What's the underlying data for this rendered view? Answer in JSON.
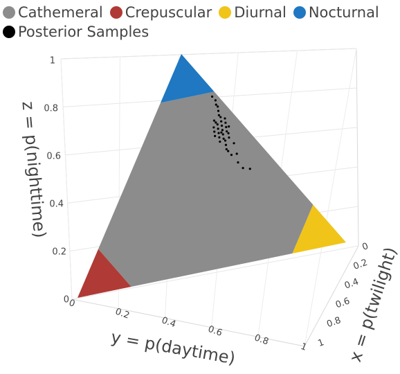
{
  "chart_data": {
    "type": "ternary3d",
    "zlabel": "z = p(nighttime)",
    "ylabel": "y = p(daytime)",
    "xlabel": "x = p(twilight)",
    "xlim": [
      0,
      1
    ],
    "ylim": [
      0,
      1
    ],
    "zlim": [
      0,
      1
    ],
    "xticks": [
      0,
      0.2,
      0.4,
      0.6,
      0.8,
      1
    ],
    "yticks": [
      0,
      0.2,
      0.4,
      0.6,
      0.8,
      1
    ],
    "zticks": [
      0,
      0.2,
      0.4,
      0.6,
      0.8,
      1
    ],
    "grid": true,
    "series": [
      {
        "name": "Cathemeral",
        "color": "#8c8c8c",
        "mode": "region",
        "x": [
          0.8,
          0.2,
          0,
          0,
          0.2,
          0.8
        ],
        "y": [
          0.2,
          0.8,
          0.8,
          0.2,
          0,
          0
        ],
        "z": [
          0,
          0,
          0.2,
          0.8,
          0.8,
          0.2
        ]
      },
      {
        "name": "Crepuscular",
        "color": "#b03a35",
        "mode": "region",
        "x": [
          1,
          0.8,
          0.8
        ],
        "y": [
          0,
          0.2,
          0
        ],
        "z": [
          0,
          0,
          0.2
        ]
      },
      {
        "name": "Diurnal",
        "color": "#f0c419",
        "mode": "region",
        "x": [
          0,
          0.2,
          0
        ],
        "y": [
          1,
          0.8,
          0.8
        ],
        "z": [
          0,
          0,
          0.2
        ]
      },
      {
        "name": "Nocturnal",
        "color": "#1f78c1",
        "mode": "region",
        "x": [
          0,
          0,
          0.2
        ],
        "y": [
          0,
          0.2,
          0
        ],
        "z": [
          1,
          0.8,
          0.8
        ]
      },
      {
        "name": "Posterior Samples",
        "color": "#000000",
        "mode": "markers",
        "x": [
          0.06,
          0.08,
          0.05,
          0.09,
          0.07,
          0.05,
          0.1,
          0.1,
          0.09,
          0.05,
          0.04,
          0.03,
          0.11,
          0.12,
          0.08,
          0.06,
          0.1,
          0.08,
          0.07,
          0.11,
          0.03,
          0.12,
          0.12,
          0.07,
          0.11,
          0.04,
          0.12,
          0.08,
          0.08,
          0.09,
          0.02,
          0.12,
          0.08,
          0.1,
          0.05,
          0.12,
          0.12,
          0.1,
          0.1,
          0.02
        ],
        "y": [
          0.28,
          0.3,
          0.27,
          0.31,
          0.29,
          0.26,
          0.32,
          0.33,
          0.28,
          0.3,
          0.25,
          0.24,
          0.34,
          0.35,
          0.27,
          0.31,
          0.29,
          0.26,
          0.32,
          0.3,
          0.23,
          0.36,
          0.28,
          0.33,
          0.27,
          0.29,
          0.31,
          0.25,
          0.34,
          0.3,
          0.22,
          0.38,
          0.37,
          0.26,
          0.32,
          0.42,
          0.45,
          0.4,
          0.48,
          0.2
        ],
        "z": [
          0.66,
          0.62,
          0.68,
          0.6,
          0.64,
          0.69,
          0.58,
          0.57,
          0.63,
          0.65,
          0.71,
          0.73,
          0.55,
          0.53,
          0.65,
          0.63,
          0.61,
          0.66,
          0.61,
          0.59,
          0.74,
          0.52,
          0.6,
          0.6,
          0.62,
          0.67,
          0.57,
          0.67,
          0.58,
          0.61,
          0.76,
          0.5,
          0.55,
          0.64,
          0.63,
          0.46,
          0.43,
          0.5,
          0.42,
          0.78
        ]
      }
    ]
  }
}
